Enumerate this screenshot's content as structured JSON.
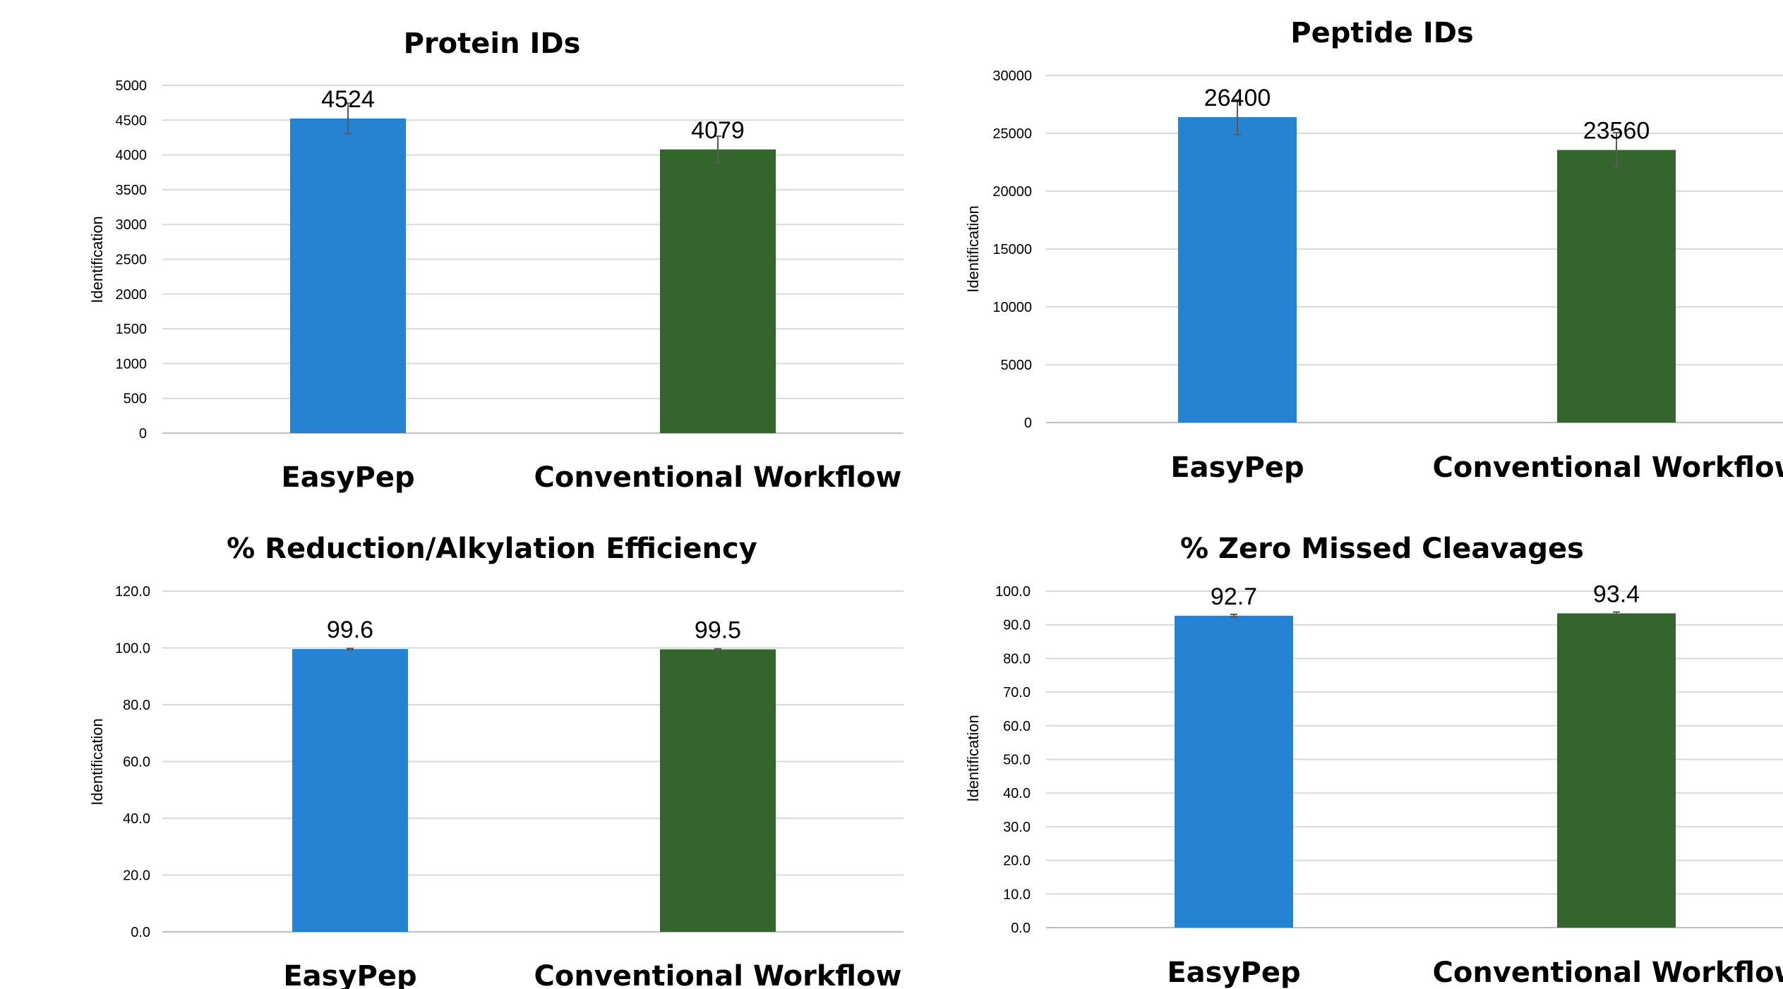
{
  "chart_data": [
    {
      "type": "bar",
      "title": "Protein IDs",
      "ylabel": "Identification",
      "xlabel": "",
      "categories": [
        "EasyPep",
        "Conventional Workflow"
      ],
      "values": [
        4524,
        4079
      ],
      "data_labels": [
        "4524",
        "4079"
      ],
      "error": [
        220,
        190
      ],
      "colors": [
        "#2683d4",
        "#33652d"
      ],
      "ylim": [
        0,
        5000
      ],
      "yticks": [
        0,
        500,
        1000,
        1500,
        2000,
        2500,
        3000,
        3500,
        4000,
        4500,
        5000
      ],
      "ytick_labels": [
        "0",
        "500",
        "1000",
        "1500",
        "2000",
        "2500",
        "3000",
        "3500",
        "4000",
        "4500",
        "5000"
      ],
      "grid": true,
      "legend": "none"
    },
    {
      "type": "bar",
      "title": "Peptide IDs",
      "ylabel": "Identification",
      "xlabel": "",
      "categories": [
        "EasyPep",
        "Conventional Workflow"
      ],
      "values": [
        26400,
        23560
      ],
      "data_labels": [
        "26400",
        "23560"
      ],
      "error": [
        1500,
        1500
      ],
      "colors": [
        "#2683d4",
        "#33652d"
      ],
      "ylim": [
        0,
        30000
      ],
      "yticks": [
        0,
        5000,
        10000,
        15000,
        20000,
        25000,
        30000
      ],
      "ytick_labels": [
        "0",
        "5000",
        "10000",
        "15000",
        "20000",
        "25000",
        "30000"
      ],
      "grid": true,
      "legend": "none"
    },
    {
      "type": "bar",
      "title": "% Reduction/Alkylation Efficiency",
      "ylabel": "Identification",
      "xlabel": "",
      "categories": [
        "EasyPep",
        "Conventional Workflow"
      ],
      "values": [
        99.6,
        99.5
      ],
      "data_labels": [
        "99.6",
        "99.5"
      ],
      "error": [
        0.2,
        0.2
      ],
      "colors": [
        "#2683d4",
        "#33652d"
      ],
      "ylim": [
        0,
        120
      ],
      "yticks": [
        0,
        20,
        40,
        60,
        80,
        100,
        120
      ],
      "ytick_labels": [
        "0.0",
        "20.0",
        "40.0",
        "60.0",
        "80.0",
        "100.0",
        "120.0"
      ],
      "grid": true,
      "legend": "none"
    },
    {
      "type": "bar",
      "title": "% Zero Missed Cleavages",
      "ylabel": "Identification",
      "xlabel": "",
      "categories": [
        "EasyPep",
        "Conventional Workflow"
      ],
      "values": [
        92.7,
        93.4
      ],
      "data_labels": [
        "92.7",
        "93.4"
      ],
      "error": [
        0.4,
        0.4
      ],
      "colors": [
        "#2683d4",
        "#33652d"
      ],
      "ylim": [
        0,
        100
      ],
      "yticks": [
        0,
        10,
        20,
        30,
        40,
        50,
        60,
        70,
        80,
        90,
        100
      ],
      "ytick_labels": [
        "0.0",
        "10.0",
        "20.0",
        "30.0",
        "40.0",
        "50.0",
        "60.0",
        "70.0",
        "80.0",
        "90.0",
        "100.0"
      ],
      "grid": true,
      "legend": "none"
    }
  ]
}
